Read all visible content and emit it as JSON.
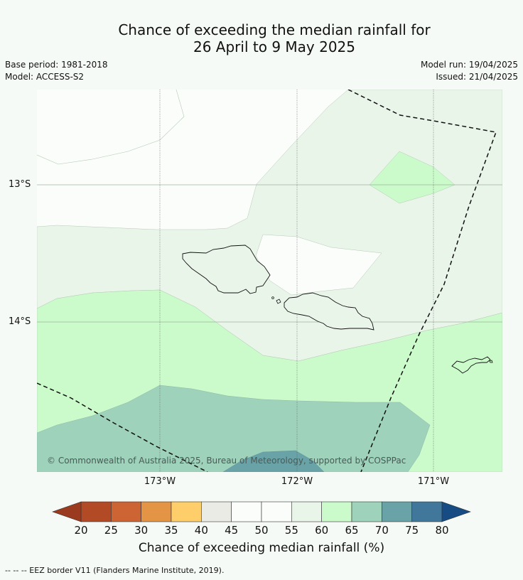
{
  "title": {
    "line1": "Chance of exceeding the median rainfall for",
    "line2": "26 April to 9 May 2025"
  },
  "meta": {
    "base_period": "Base period: 1981-2018",
    "model": "Model: ACCESS-S2",
    "model_run": "Model run: 19/04/2025",
    "issued": "Issued: 21/04/2025"
  },
  "map": {
    "lat_labels": [
      "13°S",
      "14°S"
    ],
    "lon_labels": [
      "173°W",
      "172°W",
      "171°W"
    ],
    "credit": "© Commonwealth of Australia 2025, Bureau of Meteorology, supported by COSPPac"
  },
  "colorbar": {
    "ticks": [
      "20",
      "25",
      "30",
      "35",
      "40",
      "45",
      "50",
      "55",
      "60",
      "65",
      "70",
      "75",
      "80"
    ],
    "label": "Chance of exceeding median rainfall (%)",
    "colors": {
      "under": "#9a3a1e",
      "bins": [
        "#b24a26",
        "#cd6433",
        "#e39445",
        "#fdce6a",
        "#ebebe6",
        "#fbfdfb",
        "#fbfdfb",
        "#eaf5ea",
        "#cbfbcb",
        "#9ed2bb",
        "#6aa3a7",
        "#41779a"
      ],
      "over": "#164b84"
    }
  },
  "footer": {
    "legend": "--  --  -- EEZ border V11 (Flanders Marine Institute, 2019)."
  }
}
